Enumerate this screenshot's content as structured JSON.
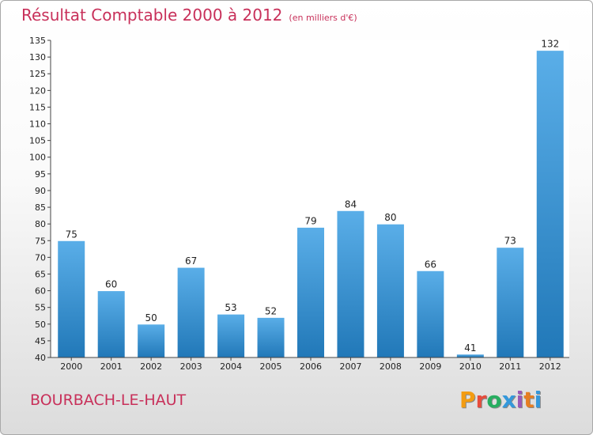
{
  "header": {
    "title": "Résultat Comptable 2000 à 2012",
    "subtitle": "(en milliers d'€)"
  },
  "footer": {
    "commune": "BOURBACH-LE-HAUT",
    "logo": "Proxiti"
  },
  "colors": {
    "title": "#c8305a",
    "bar_light": "#5aaee8",
    "bar_dark": "#2178b8",
    "logo_letters": [
      "#f39c12",
      "#e74c3c",
      "#27ae60",
      "#3498db",
      "#9b59b6",
      "#e67e22",
      "#3498db"
    ]
  },
  "chart_data": {
    "type": "bar",
    "title": "Résultat Comptable 2000 à 2012",
    "subtitle": "(en milliers d'€)",
    "xlabel": "",
    "ylabel": "",
    "categories": [
      "2000",
      "2001",
      "2002",
      "2003",
      "2004",
      "2005",
      "2006",
      "2007",
      "2008",
      "2009",
      "2010",
      "2011",
      "2012"
    ],
    "values": [
      75,
      60,
      50,
      67,
      53,
      52,
      79,
      84,
      80,
      66,
      41,
      73,
      132
    ],
    "ylim": [
      40,
      135
    ],
    "yticks": [
      40,
      45,
      50,
      55,
      60,
      65,
      70,
      75,
      80,
      85,
      90,
      95,
      100,
      105,
      110,
      115,
      120,
      125,
      130,
      135
    ],
    "grid": false,
    "legend": "none"
  }
}
